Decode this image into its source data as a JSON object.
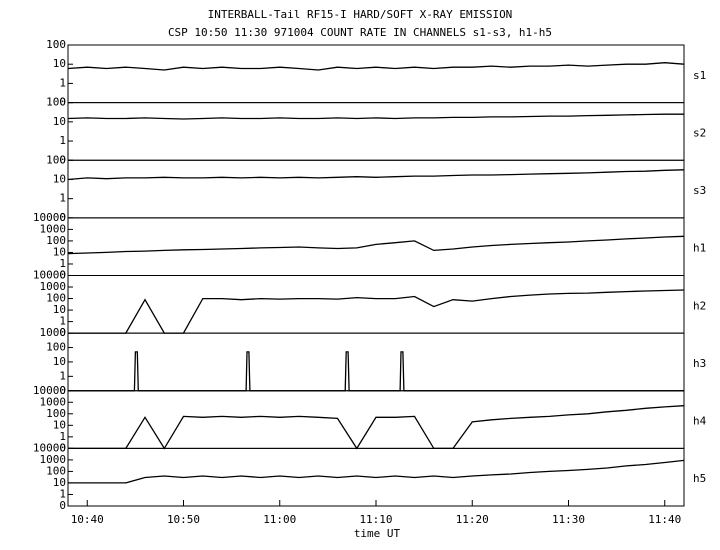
{
  "chart_data": {
    "type": "line",
    "title": "INTERBALL-Tail RF15-I HARD/SOFT X-RAY EMISSION",
    "subtitle": "CSP 10:50 11:30 971004  COUNT RATE IN CHANNELS s1-s3, h1-h5",
    "xlabel": "time UT",
    "log_scale": true,
    "color": "#000000",
    "xlim": [
      638,
      702
    ],
    "xticks": [
      {
        "value": 640,
        "label": "10:40"
      },
      {
        "value": 650,
        "label": "10:50"
      },
      {
        "value": 660,
        "label": "11:00"
      },
      {
        "value": 670,
        "label": "11:10"
      },
      {
        "value": 680,
        "label": "11:20"
      },
      {
        "value": 690,
        "label": "11:30"
      },
      {
        "value": 700,
        "label": "11:40"
      }
    ],
    "x": [
      638,
      640,
      642,
      644,
      646,
      648,
      650,
      652,
      654,
      656,
      658,
      660,
      662,
      664,
      666,
      668,
      670,
      672,
      674,
      676,
      678,
      680,
      682,
      684,
      686,
      688,
      690,
      692,
      694,
      696,
      698,
      700,
      702
    ],
    "panels": [
      {
        "name": "s1",
        "ylim": [
          0,
          100
        ],
        "yticks": [
          0,
          1,
          10,
          100
        ],
        "values": [
          6,
          7,
          6,
          7,
          6,
          5,
          7,
          6,
          7,
          6,
          6,
          7,
          6,
          5,
          7,
          6,
          7,
          6,
          7,
          6,
          7,
          7,
          8,
          7,
          8,
          8,
          9,
          8,
          9,
          10,
          10,
          12,
          10
        ]
      },
      {
        "name": "s2",
        "ylim": [
          0,
          100
        ],
        "yticks": [
          0,
          1,
          10,
          100
        ],
        "values": [
          15,
          16,
          15,
          15,
          16,
          15,
          14,
          15,
          16,
          15,
          15,
          16,
          15,
          15,
          16,
          15,
          16,
          15,
          16,
          16,
          17,
          17,
          18,
          18,
          19,
          20,
          20,
          21,
          22,
          23,
          24,
          25,
          25
        ]
      },
      {
        "name": "s3",
        "ylim": [
          0,
          100
        ],
        "yticks": [
          0,
          1,
          10,
          100
        ],
        "values": [
          10,
          12,
          11,
          12,
          12,
          13,
          12,
          12,
          13,
          12,
          13,
          12,
          13,
          12,
          13,
          14,
          13,
          14,
          15,
          15,
          16,
          17,
          17,
          18,
          19,
          20,
          21,
          22,
          24,
          26,
          27,
          30,
          32
        ]
      },
      {
        "name": "h1",
        "ylim": [
          0,
          10000
        ],
        "yticks": [
          0,
          1,
          10,
          100,
          1000,
          10000
        ],
        "values": [
          8,
          9,
          10,
          12,
          13,
          15,
          17,
          18,
          20,
          22,
          25,
          27,
          30,
          25,
          22,
          25,
          50,
          70,
          100,
          15,
          20,
          30,
          40,
          50,
          60,
          70,
          80,
          100,
          120,
          150,
          180,
          220,
          250
        ]
      },
      {
        "name": "h2",
        "ylim": [
          0,
          10000
        ],
        "yticks": [
          0,
          1,
          10,
          100,
          1000,
          10000
        ],
        "values": [
          0,
          0,
          0,
          0,
          80,
          0,
          0,
          100,
          100,
          80,
          100,
          90,
          100,
          100,
          90,
          120,
          100,
          100,
          150,
          20,
          80,
          60,
          100,
          150,
          200,
          250,
          280,
          300,
          350,
          400,
          450,
          500,
          550
        ]
      },
      {
        "name": "h3",
        "ylim": [
          0,
          1000
        ],
        "yticks": [
          0,
          1,
          10,
          100,
          1000
        ],
        "x": [
          638,
          644.9,
          645,
          645.2,
          645.3,
          656.5,
          656.6,
          656.8,
          656.9,
          666.8,
          666.9,
          667.1,
          667.2,
          672.5,
          672.6,
          672.8,
          672.9,
          702
        ],
        "values": [
          0,
          0,
          50,
          50,
          0,
          0,
          50,
          50,
          0,
          0,
          50,
          50,
          0,
          0,
          50,
          50,
          0,
          0
        ]
      },
      {
        "name": "h4",
        "ylim": [
          0,
          10000
        ],
        "yticks": [
          0,
          1,
          10,
          100,
          1000,
          10000
        ],
        "values": [
          0,
          0,
          0,
          0,
          50,
          0,
          60,
          50,
          60,
          50,
          60,
          50,
          60,
          50,
          40,
          0,
          50,
          50,
          60,
          0,
          0,
          20,
          30,
          40,
          50,
          60,
          80,
          100,
          150,
          200,
          300,
          400,
          500
        ]
      },
      {
        "name": "h5",
        "ylim": [
          0,
          10000
        ],
        "yticks": [
          0,
          1,
          10,
          100,
          1000,
          10000
        ],
        "values": [
          10,
          10,
          10,
          10,
          30,
          40,
          30,
          40,
          30,
          40,
          30,
          40,
          30,
          40,
          30,
          40,
          30,
          40,
          30,
          40,
          30,
          40,
          50,
          60,
          80,
          100,
          120,
          150,
          200,
          300,
          400,
          600,
          900
        ]
      }
    ]
  }
}
